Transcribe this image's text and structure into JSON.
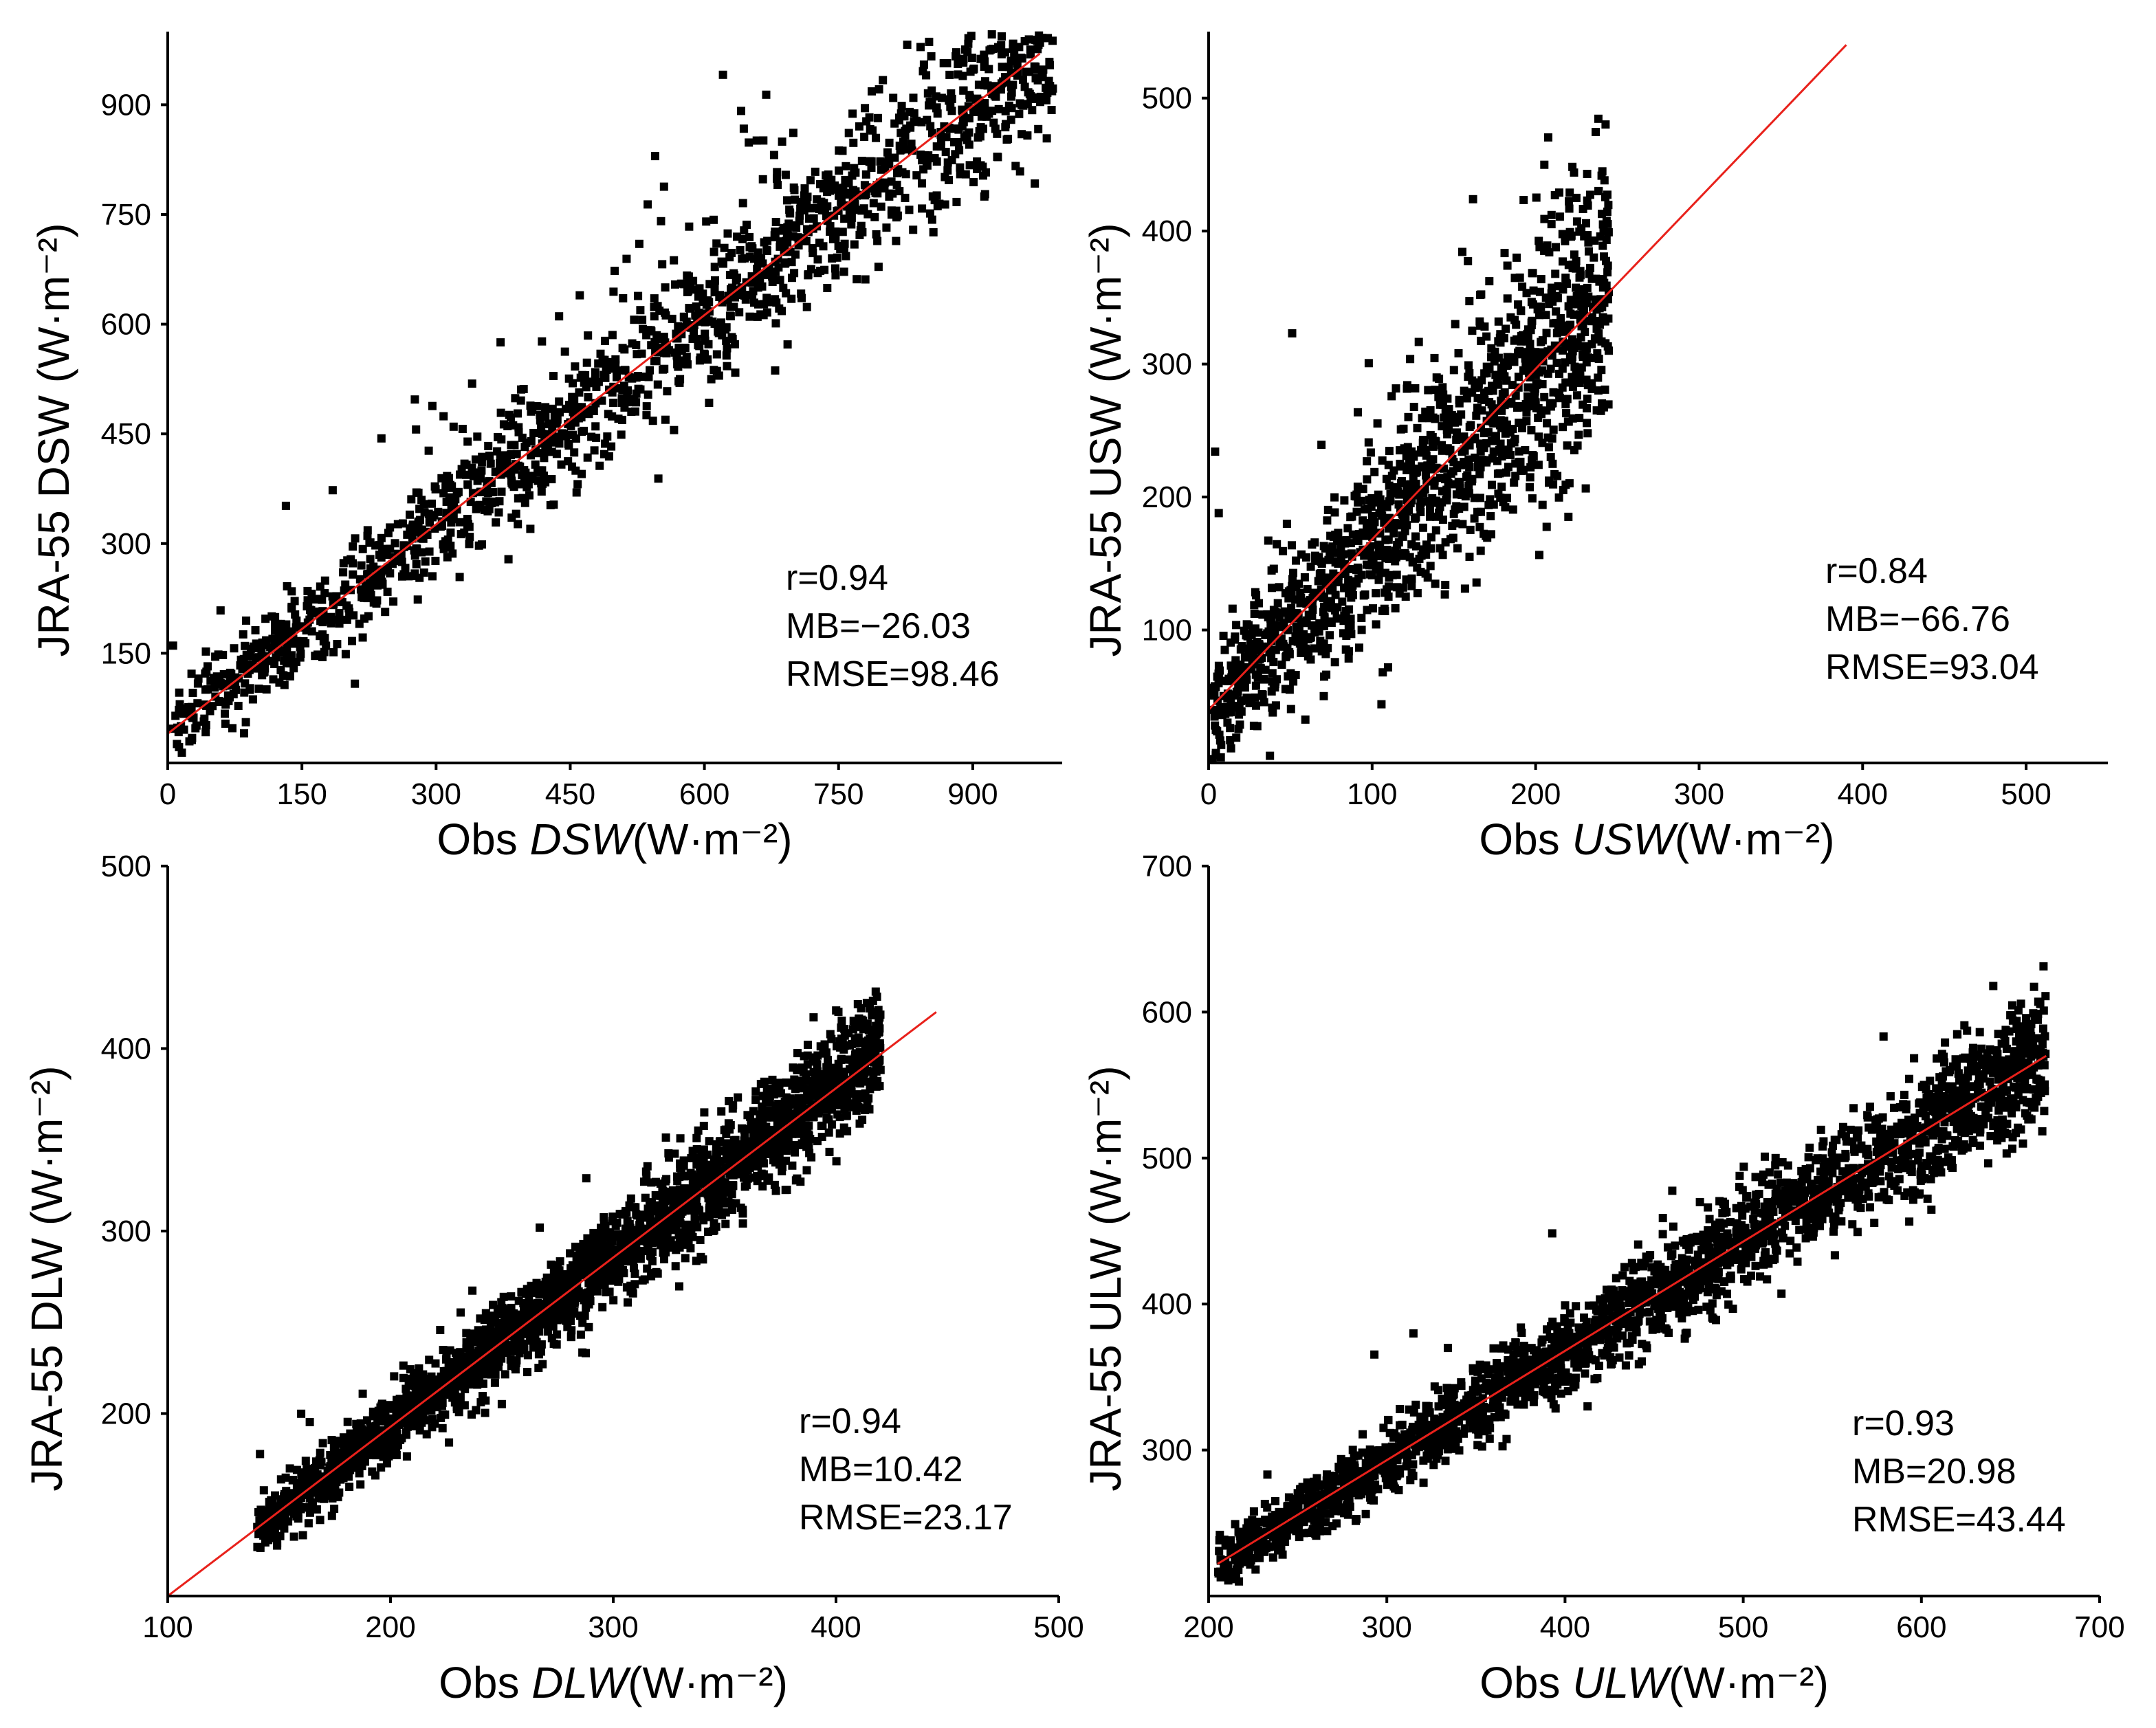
{
  "colors": {
    "points": "#000000",
    "fit_line": "#e8211b",
    "axes": "#000000"
  },
  "chart_data": [
    {
      "id": "dsw",
      "type": "scatter",
      "title": "",
      "xlabel_prefix": "Obs ",
      "xlabel_var": "DSW",
      "xlabel_unit": "(W·m⁻²)",
      "ylabel": "JRA-55 DSW (W·m⁻²)",
      "xlim": [
        0,
        1000
      ],
      "ylim": [
        0,
        1000
      ],
      "xticks": [
        0,
        150,
        300,
        450,
        600,
        750,
        900
      ],
      "yticks": [
        150,
        300,
        450,
        600,
        750,
        900
      ],
      "fit_line": {
        "x": [
          0,
          975
        ],
        "y": [
          40,
          970
        ]
      },
      "stats": {
        "r": "r=0.94",
        "mb": "MB=−26.03",
        "rmse": "RMSE=98.46"
      },
      "scatter": {
        "n": 1600,
        "xmin": 5,
        "xmax": 990,
        "noise": 62,
        "slope": 0.954,
        "intercept": 40,
        "outlier_frac": 0.06,
        "seed": 11
      }
    },
    {
      "id": "usw",
      "type": "scatter",
      "title": "",
      "xlabel_prefix": "Obs ",
      "xlabel_var": "USW",
      "xlabel_unit": "(W·m⁻²)",
      "ylabel": "JRA-55 USW (W·m⁻²)",
      "xlim": [
        0,
        550
      ],
      "ylim": [
        0,
        550
      ],
      "xticks": [
        0,
        100,
        200,
        300,
        400,
        500
      ],
      "yticks": [
        100,
        200,
        300,
        400,
        500
      ],
      "fit_line": {
        "x": [
          0,
          390
        ],
        "y": [
          40,
          540
        ]
      },
      "stats": {
        "r": "r=0.84",
        "mb": "MB=−66.76",
        "rmse": "RMSE=93.04"
      },
      "scatter": {
        "n": 1400,
        "xmin": 2,
        "xmax": 245,
        "noise": 55,
        "slope": 1.28,
        "intercept": 40,
        "outlier_frac": 0.02,
        "seed": 23
      }
    },
    {
      "id": "dlw",
      "type": "scatter",
      "title": "",
      "xlabel_prefix": "Obs ",
      "xlabel_var": "DLW",
      "xlabel_unit": "(W·m⁻²)",
      "ylabel": "JRA-55 DLW (W·m⁻²)",
      "xlim": [
        100,
        500
      ],
      "ylim": [
        100,
        500
      ],
      "xticks": [
        100,
        200,
        300,
        400,
        500
      ],
      "yticks": [
        200,
        300,
        400,
        500
      ],
      "fit_line": {
        "x": [
          100,
          445
        ],
        "y": [
          100,
          420
        ]
      },
      "stats": {
        "r": "r=0.94",
        "mb": "MB=10.42",
        "rmse": "RMSE=23.17"
      },
      "scatter": {
        "n": 2600,
        "xmin": 140,
        "xmax": 420,
        "noise": 16,
        "slope": 0.93,
        "intercept": 7,
        "outlier_frac": 0.01,
        "seed": 37
      }
    },
    {
      "id": "ulw",
      "type": "scatter",
      "title": "",
      "xlabel_prefix": "Obs ",
      "xlabel_var": "ULW",
      "xlabel_unit": "(W·m⁻²)",
      "ylabel": "JRA-55 ULW (W·m⁻²)",
      "xlim": [
        200,
        700
      ],
      "ylim": [
        200,
        700
      ],
      "xticks": [
        200,
        300,
        400,
        500,
        600,
        700
      ],
      "yticks": [
        300,
        400,
        500,
        600,
        700
      ],
      "fit_line": {
        "x": [
          205,
          670
        ],
        "y": [
          222,
          570
        ]
      },
      "stats": {
        "r": "r=0.93",
        "mb": "MB=20.98",
        "rmse": "RMSE=43.44"
      },
      "scatter": {
        "n": 2600,
        "xmin": 205,
        "xmax": 670,
        "noise": 22,
        "slope": 0.748,
        "intercept": 69,
        "outlier_frac": 0.01,
        "seed": 53
      }
    }
  ]
}
